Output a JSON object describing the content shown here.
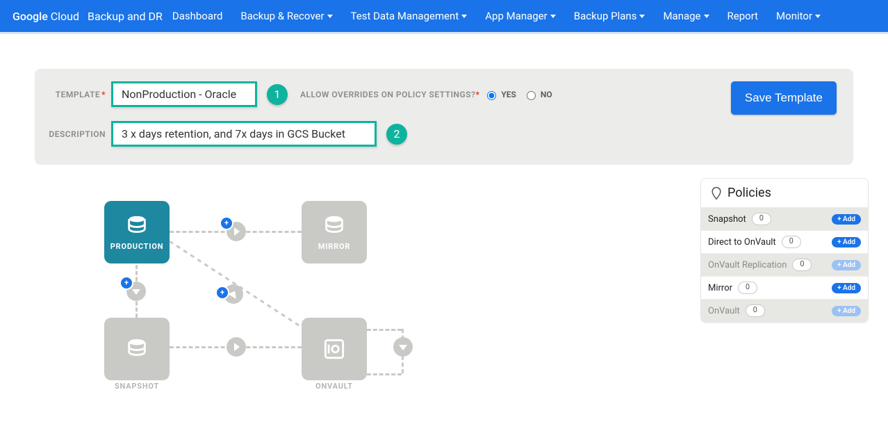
{
  "nav": {
    "brand_html": "Google Cloud",
    "product": "Backup and DR",
    "items": [
      {
        "label": "Dashboard",
        "drop": false
      },
      {
        "label": "Backup & Recover",
        "drop": true
      },
      {
        "label": "Test Data Management",
        "drop": true
      },
      {
        "label": "App Manager",
        "drop": true
      },
      {
        "label": "Backup Plans",
        "drop": true
      },
      {
        "label": "Manage",
        "drop": true
      },
      {
        "label": "Report",
        "drop": false
      },
      {
        "label": "Monitor",
        "drop": true
      }
    ]
  },
  "form": {
    "template_label": "TEMPLATE",
    "template_value": "NonProduction - Oracle",
    "callout1": "1",
    "allow_label": "ALLOW OVERRIDES ON POLICY SETTINGS?",
    "yes": "YES",
    "no": "NO",
    "selected": "yes",
    "desc_label": "DESCRIPTION",
    "desc_value": "3 x days retention, and 7x days in GCS Bucket",
    "callout2": "2",
    "save": "Save Template"
  },
  "nodes": {
    "production": "PRODUCTION",
    "mirror": "MIRROR",
    "snapshot": "SNAPSHOT",
    "onvault": "ONVAULT"
  },
  "policies": {
    "title": "Policies",
    "rows": [
      {
        "label": "Snapshot",
        "count": "0",
        "shaded": true,
        "dim": false,
        "add": "+ Add"
      },
      {
        "label": "Direct to OnVault",
        "count": "0",
        "shaded": false,
        "dim": false,
        "add": "+ Add"
      },
      {
        "label": "OnVault Replication",
        "count": "0",
        "shaded": true,
        "dim": true,
        "add": "+ Add"
      },
      {
        "label": "Mirror",
        "count": "0",
        "shaded": false,
        "dim": false,
        "add": "+ Add"
      },
      {
        "label": "OnVault",
        "count": "0",
        "shaded": true,
        "dim": true,
        "add": "+ Add"
      }
    ]
  },
  "colors": {
    "accent": "#1a73e8",
    "teal": "#0eb39e",
    "node_active": "#1e88a0",
    "ghost": "#c9cac6",
    "panel": "#ececea"
  }
}
